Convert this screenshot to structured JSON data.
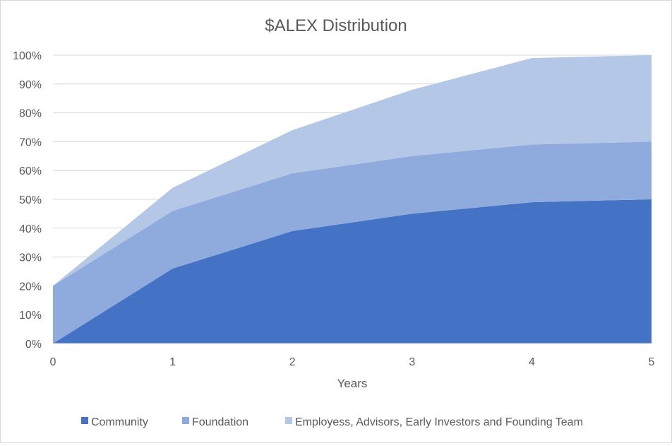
{
  "chart_data": {
    "type": "area",
    "stacked": true,
    "title": "$ALEX Distribution",
    "xlabel": "Years",
    "ylabel": "",
    "x": [
      0,
      1,
      2,
      3,
      4,
      5
    ],
    "xticks": [
      "0",
      "1",
      "2",
      "3",
      "4",
      "5"
    ],
    "yticks": [
      "0%",
      "10%",
      "20%",
      "30%",
      "40%",
      "50%",
      "60%",
      "70%",
      "80%",
      "90%",
      "100%"
    ],
    "ylim": [
      0,
      100
    ],
    "grid": true,
    "legend_position": "bottom",
    "series": [
      {
        "name": "Community",
        "values": [
          0,
          26,
          39,
          45,
          49,
          50
        ],
        "color": "#4472C4"
      },
      {
        "name": "Foundation",
        "values": [
          20,
          20,
          20,
          20,
          20,
          20
        ],
        "color": "#8FAADC"
      },
      {
        "name": "Employess, Advisors, Early Investors and Founding Team",
        "values": [
          0,
          8,
          15,
          23,
          30,
          30
        ],
        "color": "#B4C7E7"
      }
    ]
  }
}
